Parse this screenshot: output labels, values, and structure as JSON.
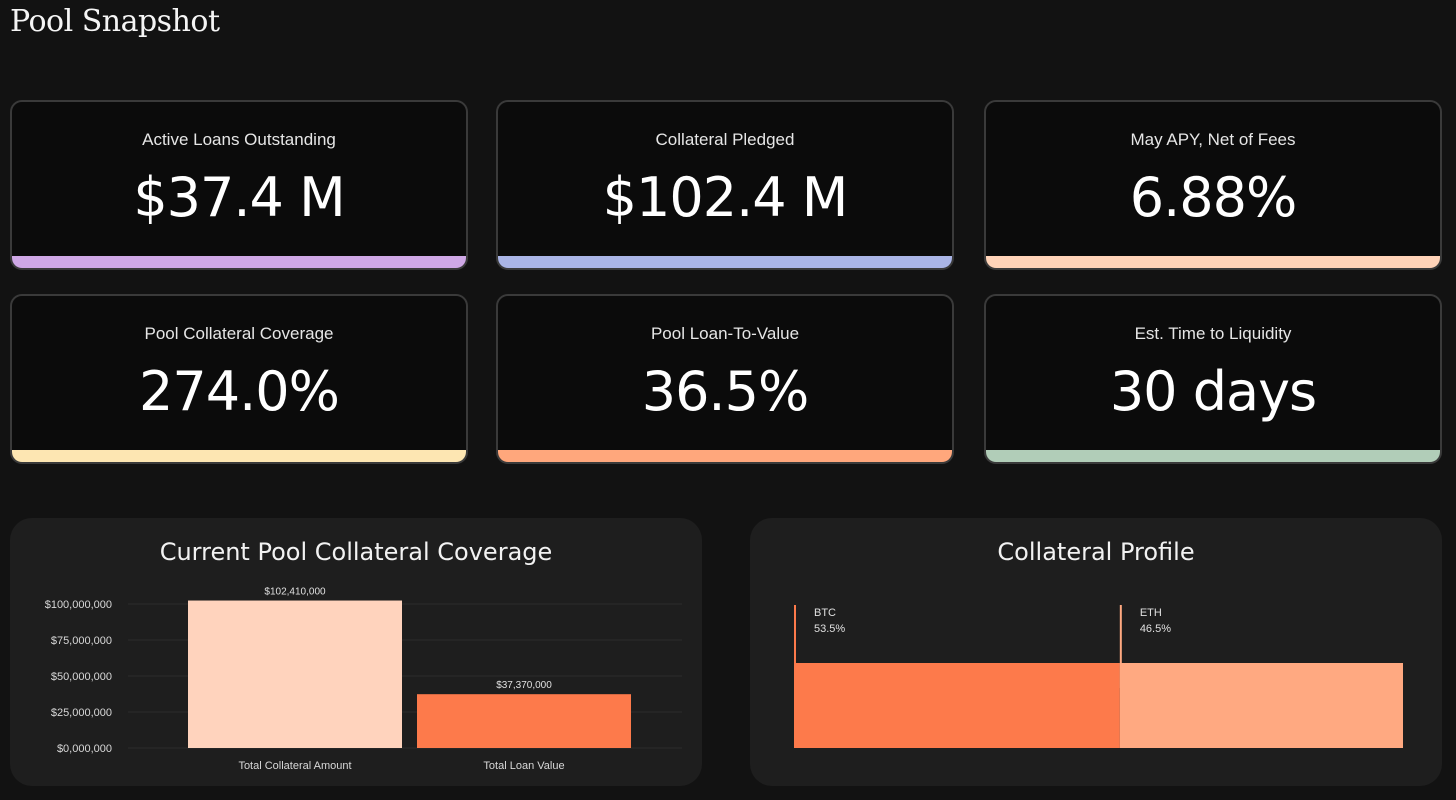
{
  "page": {
    "title": "Pool Snapshot"
  },
  "kpis": [
    {
      "label": "Active Loans Outstanding",
      "value": "$37.4 M",
      "color": "#cfa8e6"
    },
    {
      "label": "Collateral Pledged",
      "value": "$102.4 M",
      "color": "#aab5e6"
    },
    {
      "label": "May APY, Net of Fees",
      "value": "6.88%",
      "color": "#ffd3b8"
    },
    {
      "label": "Pool Collateral Coverage",
      "value": "274.0%",
      "color": "#fde6b2"
    },
    {
      "label": "Pool Loan-To-Value",
      "value": "36.5%",
      "color": "#ffa77c"
    },
    {
      "label": "Est. Time to Liquidity",
      "value": "30 days",
      "color": "#b1cdb8"
    }
  ],
  "coverage_panel": {
    "title": "Current Pool Collateral Coverage"
  },
  "profile_panel": {
    "title": "Collateral Profile"
  },
  "chart_data": [
    {
      "type": "bar",
      "title": "Current Pool Collateral Coverage",
      "categories": [
        "Total Collateral Amount",
        "Total Loan Value"
      ],
      "values": [
        102410000,
        37370000
      ],
      "value_labels": [
        "$102,410,000",
        "$37,370,000"
      ],
      "colors": [
        "#ffd3bd",
        "#fd7a4b"
      ],
      "ylim": [
        0,
        102410000
      ],
      "yticks": [
        0,
        25000000,
        50000000,
        75000000,
        100000000
      ],
      "ytick_labels": [
        "$0,000,000",
        "$25,000,000",
        "$50,000,000",
        "$75,000,000",
        "$100,000,000"
      ],
      "grid": true,
      "xlabel": "",
      "ylabel": ""
    },
    {
      "type": "bar",
      "title": "Collateral Profile",
      "stacked": true,
      "categories": [
        "BTC",
        "ETH"
      ],
      "values": [
        53.5,
        46.5
      ],
      "value_labels": [
        "53.5%",
        "46.5%"
      ],
      "colors": [
        "#fd7a4b",
        "#ffa981"
      ]
    }
  ]
}
